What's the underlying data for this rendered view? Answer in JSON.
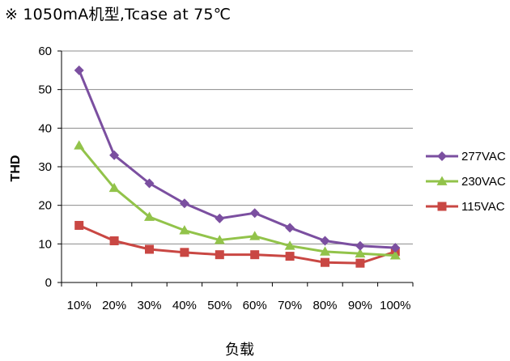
{
  "heading": "※ 1050mA机型,Tcase at 75℃",
  "chart_data": {
    "type": "line",
    "categories": [
      "10%",
      "20%",
      "30%",
      "40%",
      "50%",
      "60%",
      "70%",
      "80%",
      "90%",
      "100%"
    ],
    "series": [
      {
        "name": "277VAC",
        "color": "#7b4fa0",
        "marker": "diamond",
        "values": [
          55,
          33,
          25.7,
          20.5,
          16.6,
          18,
          14.2,
          10.8,
          9.5,
          9
        ]
      },
      {
        "name": "230VAC",
        "color": "#92c34a",
        "marker": "triangle",
        "values": [
          35.5,
          24.5,
          17,
          13.5,
          11,
          12,
          9.5,
          8,
          7.5,
          7
        ]
      },
      {
        "name": "115VAC",
        "color": "#c94743",
        "marker": "square",
        "values": [
          14.8,
          10.8,
          8.6,
          7.8,
          7.2,
          7.2,
          6.8,
          5.2,
          5,
          8
        ]
      }
    ],
    "title": "",
    "xlabel": "负载",
    "ylabel": "THD",
    "ylim": [
      0,
      60
    ],
    "yticks": [
      0,
      10,
      20,
      30,
      40,
      50,
      60
    ],
    "grid": "horizontal",
    "legend": "right"
  }
}
